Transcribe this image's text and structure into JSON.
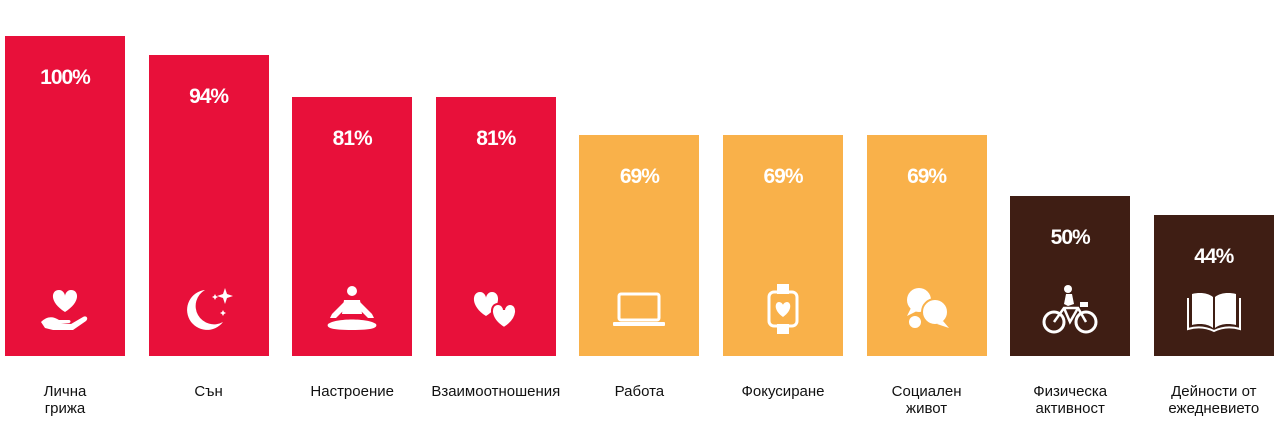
{
  "chart_data": {
    "type": "bar",
    "categories": [
      "Лична\nгрижа",
      "Сън",
      "Настроение",
      "Взаимоотношения",
      "Работа",
      "Фокусиране",
      "Социален\nживот",
      "Физическа\nактивност",
      "Дейности от\nежедневието"
    ],
    "values": [
      100,
      94,
      81,
      81,
      69,
      69,
      69,
      50,
      44
    ],
    "value_labels": [
      "100%",
      "94%",
      "81%",
      "81%",
      "69%",
      "69%",
      "69%",
      "50%",
      "44%"
    ],
    "ylim": [
      0,
      100
    ],
    "colors": [
      "#E8103A",
      "#E8103A",
      "#E8103A",
      "#E8103A",
      "#F9B14A",
      "#F9B14A",
      "#F9B14A",
      "#3F1E14",
      "#3F1E14"
    ],
    "icons": [
      "heart-hand-icon",
      "moon-stars-icon",
      "meditation-icon",
      "two-hearts-icon",
      "laptop-icon",
      "smartwatch-heart-icon",
      "chat-bubbles-icon",
      "bicycle-rider-icon",
      "open-book-icon"
    ],
    "grid": false,
    "legend": "none"
  }
}
